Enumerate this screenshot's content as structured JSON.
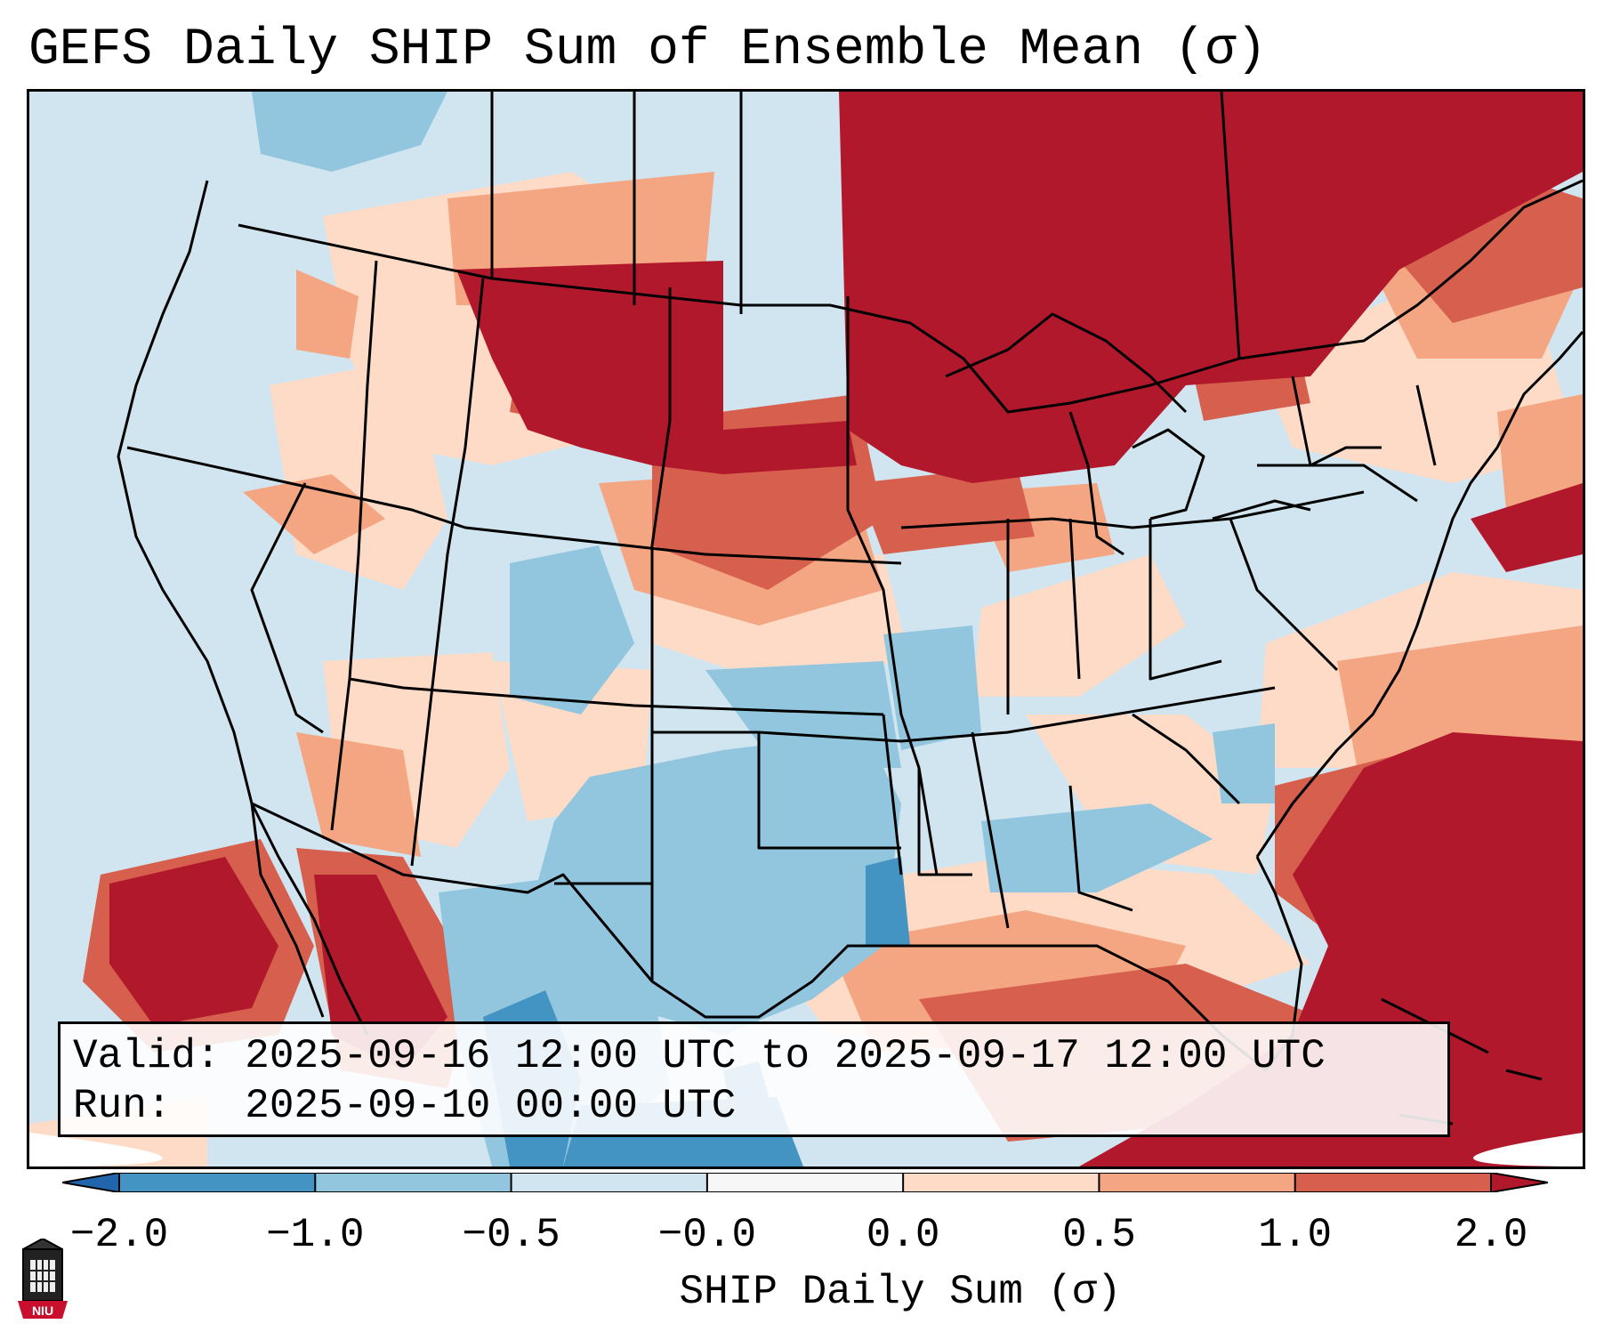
{
  "title": "GEFS Daily SHIP Sum of Ensemble Mean (σ)",
  "info": {
    "valid_label": "Valid:",
    "valid_text": "2025-09-16 12:00 UTC to 2025-09-17 12:00 UTC",
    "run_label": "Run:",
    "run_text": "2025-09-10 00:00 UTC"
  },
  "colorbar": {
    "label": "SHIP Daily Sum (σ)",
    "ticks": [
      "−2.0",
      "−1.0",
      "−0.5",
      "−0.0",
      "0.0",
      "0.5",
      "1.0",
      "2.0"
    ],
    "bins": [
      {
        "color": "#2166ac",
        "range": "< -2.0"
      },
      {
        "color": "#4393c3",
        "range": "-2.0 to -1.0"
      },
      {
        "color": "#92c5de",
        "range": "-1.0 to -0.5"
      },
      {
        "color": "#d1e5f0",
        "range": "-0.5 to -0.0"
      },
      {
        "color": "#f7f7f7",
        "range": "-0.0 to 0.0"
      },
      {
        "color": "#fddbc7",
        "range": "0.0 to 0.5"
      },
      {
        "color": "#f4a582",
        "range": "0.5 to 1.0"
      },
      {
        "color": "#d6604d",
        "range": "1.0 to 2.0"
      },
      {
        "color": "#b2182b",
        "range": "> 2.0"
      }
    ]
  },
  "map": {
    "regions": [
      {
        "name": "canadian-prairies-north-plains",
        "category": "> 2.0"
      },
      {
        "name": "great-lakes-upper-midwest",
        "category": "> 2.0"
      },
      {
        "name": "western-atlantic",
        "category": "> 2.0"
      },
      {
        "name": "eastern-pacific-baja",
        "category": "> 2.0"
      },
      {
        "name": "texas-southern-plains",
        "category": "-1.0 to -0.5"
      },
      {
        "name": "gulf-of-mexico",
        "category": "0.5 to 1.0"
      },
      {
        "name": "west-texas-northern-mexico",
        "category": "-2.0 to -1.0"
      },
      {
        "name": "colorado",
        "category": "-1.0 to -0.5"
      },
      {
        "name": "central-plains",
        "category": "1.0 to 2.0"
      }
    ]
  },
  "logo": {
    "text": "NIU"
  }
}
